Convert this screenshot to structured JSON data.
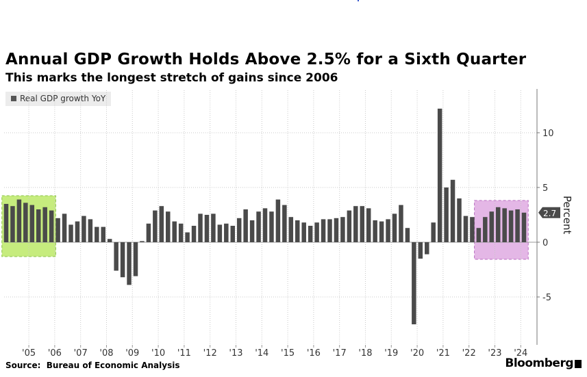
{
  "chart_data": {
    "type": "bar",
    "title": "Annual GDP Growth Holds Above 2.5% for a Sixth Quarter",
    "subtitle": "This marks the longest stretch of gains since 2006",
    "legend": [
      "Real GDP growth YoY"
    ],
    "ylabel": "Percent",
    "ylim": [
      -9,
      14
    ],
    "yticks": [
      -5,
      0,
      5,
      10
    ],
    "ytick_labels": [
      "-5",
      "0",
      "5",
      "10"
    ],
    "xtick_labels": [
      "'05",
      "'06",
      "'07",
      "'08",
      "'09",
      "'10",
      "'11",
      "'12",
      "'13",
      "'14",
      "'15",
      "'16",
      "'17",
      "'18",
      "'19",
      "'20",
      "'21",
      "'22",
      "'23",
      "'24"
    ],
    "last_value_label": "2.7",
    "quarters_start": "2004Q3",
    "series": [
      {
        "name": "Real GDP growth YoY",
        "values": [
          3.5,
          3.3,
          3.9,
          3.6,
          3.4,
          3.0,
          3.2,
          2.9,
          2.2,
          2.6,
          1.6,
          1.9,
          2.4,
          2.1,
          1.4,
          1.4,
          0.3,
          -2.6,
          -3.2,
          -3.9,
          -3.1,
          0.1,
          1.7,
          2.9,
          3.3,
          2.8,
          1.9,
          1.7,
          0.9,
          1.5,
          2.6,
          2.5,
          2.6,
          1.6,
          1.7,
          1.5,
          2.2,
          3.0,
          2.0,
          2.8,
          3.1,
          2.8,
          3.9,
          3.4,
          2.3,
          2.0,
          1.8,
          1.5,
          1.8,
          2.1,
          2.1,
          2.2,
          2.3,
          2.9,
          3.3,
          3.3,
          3.1,
          2.0,
          1.9,
          2.1,
          2.6,
          3.4,
          1.3,
          -7.5,
          -1.5,
          -1.1,
          1.8,
          12.2,
          5.0,
          5.7,
          4.0,
          2.4,
          2.3,
          1.3,
          2.3,
          2.8,
          3.2,
          3.1,
          2.9,
          3.0,
          2.7
        ]
      }
    ],
    "highlights": [
      {
        "from_year": 2004.5,
        "to_year": 2006.25,
        "color": "#c6ec7e"
      },
      {
        "from_year": 2022.75,
        "to_year": 2024.5,
        "color": "#e4b7e6"
      }
    ]
  },
  "source_label": "Source:",
  "source_text": "Bureau of Economic Analysis",
  "brand": "Bloomberg"
}
